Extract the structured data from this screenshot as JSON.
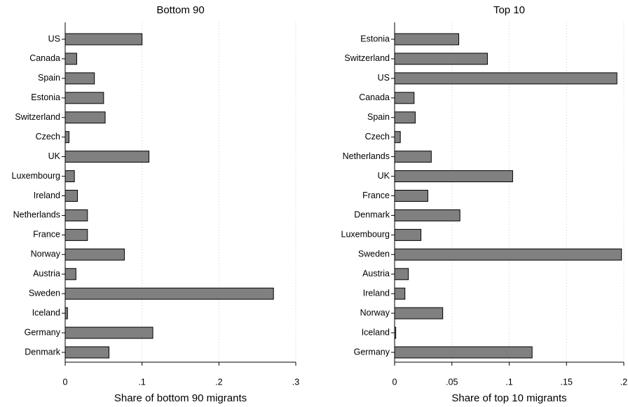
{
  "chart_data": [
    {
      "type": "bar",
      "orientation": "horizontal",
      "title": "Bottom 90",
      "x_label": "Share of bottom 90 migrants",
      "categories": [
        "US",
        "Canada",
        "Spain",
        "Estonia",
        "Switzerland",
        "Czech",
        "UK",
        "Luxembourg",
        "Ireland",
        "Netherlands",
        "France",
        "Norway",
        "Austria",
        "Sweden",
        "Iceland",
        "Germany",
        "Denmark"
      ],
      "values": [
        0.1,
        0.015,
        0.038,
        0.05,
        0.052,
        0.005,
        0.109,
        0.012,
        0.016,
        0.029,
        0.029,
        0.077,
        0.014,
        0.271,
        0.003,
        0.114,
        0.057
      ],
      "color": "#808080",
      "xlim": [
        0,
        0.3
      ],
      "xticks": [
        0,
        {
          "value": 0.1,
          "label": ".1"
        },
        {
          "value": 0.2,
          "label": ".2"
        },
        {
          "value": 0.3,
          "label": ".3"
        }
      ],
      "grid": true
    },
    {
      "type": "bar",
      "orientation": "horizontal",
      "title": "Top 10",
      "x_label": "Share of top 10 migrants",
      "categories": [
        "Estonia",
        "Switzerland",
        "US",
        "Canada",
        "Spain",
        "Czech",
        "Netherlands",
        "UK",
        "France",
        "Denmark",
        "Luxembourg",
        "Sweden",
        "Austria",
        "Ireland",
        "Norway",
        "Iceland",
        "Germany"
      ],
      "values": [
        0.056,
        0.081,
        0.194,
        0.017,
        0.018,
        0.005,
        0.032,
        0.103,
        0.029,
        0.057,
        0.023,
        0.198,
        0.012,
        0.009,
        0.042,
        0.001,
        0.12
      ],
      "color": "#808080",
      "xlim": [
        0,
        0.2
      ],
      "xticks": [
        0,
        {
          "value": 0.05,
          "label": ".05"
        },
        {
          "value": 0.1,
          "label": ".1"
        },
        {
          "value": 0.15,
          "label": ".15"
        },
        {
          "value": 0.2,
          "label": ".2"
        }
      ],
      "grid": true
    }
  ]
}
